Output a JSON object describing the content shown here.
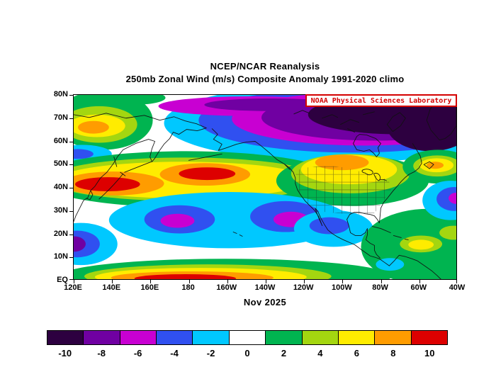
{
  "titles": {
    "line1": "NCEP/NCAR Reanalysis",
    "line2": "250mb Zonal Wind (m/s) Composite Anomaly 1991-2020 climo"
  },
  "badge": {
    "text": "NOAA Physical Sciences Laboratory"
  },
  "caption": "Nov 2025",
  "colors": {
    "badge_red": "#d40000",
    "frame": "#000000"
  },
  "map": {
    "lat_labels": [
      "80N",
      "70N",
      "60N",
      "50N",
      "40N",
      "30N",
      "20N",
      "10N",
      "EQ"
    ],
    "lon_labels": [
      "120E",
      "140E",
      "160E",
      "180",
      "160W",
      "140W",
      "120W",
      "100W",
      "80W",
      "60W",
      "40W"
    ]
  },
  "colorbar": {
    "tick_labels": [
      "-10",
      "-8",
      "-6",
      "-4",
      "-2",
      "0",
      "2",
      "4",
      "6",
      "8",
      "10"
    ],
    "colors": [
      "#2d0040",
      "#7000a2",
      "#c800d2",
      "#3050f0",
      "#00c8ff",
      "#ffffff",
      "#00b450",
      "#a4d610",
      "#ffec00",
      "#ff9c00",
      "#dd0000"
    ]
  },
  "chart_data": {
    "type": "heatmap",
    "title": "NCEP/NCAR Reanalysis",
    "subtitle": "250mb Zonal Wind (m/s) Composite Anomaly 1991-2020 climo",
    "variable": "250mb zonal wind anomaly",
    "units": "m/s",
    "period": "Nov 2025",
    "climatology": "1991-2020",
    "lat_range_deg": [
      0,
      80
    ],
    "lon_range": "120E eastward to 40W",
    "contour_levels": [
      -10,
      -8,
      -6,
      -4,
      -2,
      0,
      2,
      4,
      6,
      8,
      10
    ],
    "lats": [
      80,
      70,
      60,
      50,
      40,
      30,
      20,
      10,
      0
    ],
    "lons": [
      "120E",
      "140E",
      "160E",
      "180",
      "160W",
      "140W",
      "120W",
      "100W",
      "80W",
      "60W",
      "40W"
    ],
    "values_est": [
      [
        2,
        1,
        -1,
        -5,
        -7,
        -8,
        -10,
        -11,
        -12,
        -12,
        -11
      ],
      [
        3,
        5,
        2,
        -4,
        -6,
        -8,
        -10,
        -11,
        -12,
        -10,
        -9
      ],
      [
        4,
        5,
        0,
        -3,
        -4,
        -6,
        -7,
        -8,
        -9,
        -8,
        -5
      ],
      [
        5,
        6,
        5,
        7,
        8,
        5,
        2,
        7,
        3,
        2,
        5
      ],
      [
        9,
        10,
        8,
        9,
        10,
        3,
        -1,
        5,
        4,
        0,
        -3
      ],
      [
        4,
        0,
        -4,
        -6,
        -3,
        -7,
        -4,
        -2,
        2,
        1,
        -4
      ],
      [
        -6,
        -3,
        -4,
        -4,
        -3,
        -5,
        -2,
        -3,
        3,
        4,
        2
      ],
      [
        -4,
        1,
        3,
        4,
        3,
        2,
        1,
        0,
        3,
        5,
        3
      ],
      [
        0,
        4,
        7,
        9,
        8,
        5,
        2,
        2,
        2,
        3,
        2
      ]
    ],
    "features": [
      "Large strong negative anomaly (< -10 m/s, dark purple) over northern Canada, the Canadian Arctic and Greenland extending across the top of the map",
      "Positive anomaly band along 40-50N across the Pacific with red maxima (> 10 m/s) near Japan (~40N,140E) and the central North Pacific (~46N,165W)",
      "Negative anomaly band (cyan/blue, magenta cores) across the subtropical Pacific near 20-30N",
      "Negative blob (blue/purple) near the Philippines around 15-20N,125E",
      "Positive equatorial band with orange/red core near the dateline (0-5N)",
      "Yellow/orange positive anomaly over the northern United States around 45-50N,100W",
      "Cyan/blue negative anomaly over Mexico near 25N,105W",
      "Green positive anomalies over the Caribbean and tropical Atlantic",
      "Blue negative blob in the mid Atlantic near 35N,45W"
    ],
    "legend_position": "bottom horizontal colorbar",
    "grid": false
  }
}
